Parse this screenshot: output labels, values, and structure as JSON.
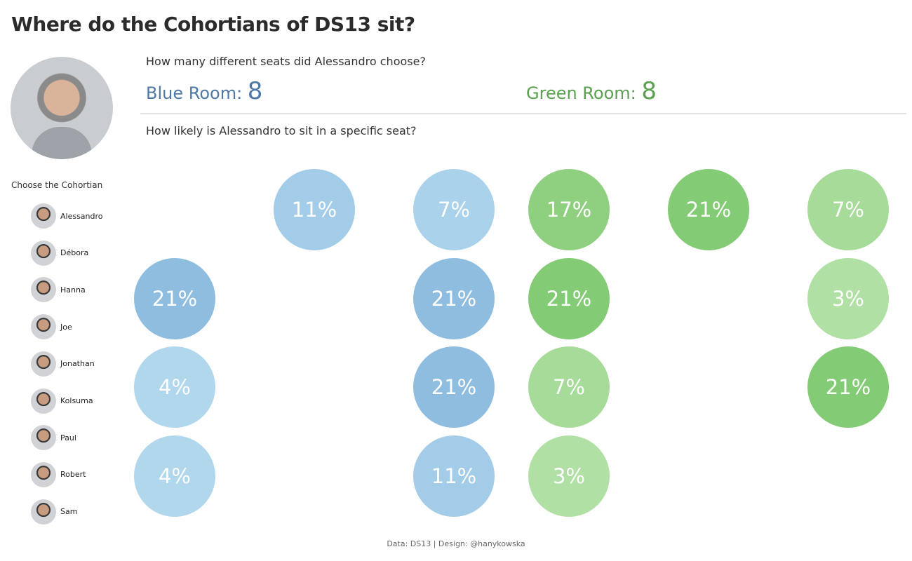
{
  "title": "Where do the Cohortians of DS13 sit?",
  "filter": {
    "label": "Choose the Cohortian",
    "selected": "Alessandro",
    "people": [
      "Alessandro",
      "Débora",
      "Hanna",
      "Joe",
      "Jonathan",
      "Kolsuma",
      "Paul",
      "Robert",
      "Sam"
    ]
  },
  "q1": "How many different seats did Alessandro choose?",
  "blue": {
    "label": "Blue Room: ",
    "value": "8",
    "color": "#4e79a7"
  },
  "green": {
    "label": "Green Room: ",
    "value": "8",
    "color": "#59a14f"
  },
  "q2": "How likely is Alessandro to sit in a specific seat?",
  "footer": "Data: DS13 | Design: @hanykowska",
  "chart_data": {
    "type": "heatmap",
    "seats": [
      {
        "row": 1,
        "col": 2,
        "room": "blue",
        "pct": 11
      },
      {
        "row": 1,
        "col": 3,
        "room": "blue",
        "pct": 7
      },
      {
        "row": 1,
        "col": 4,
        "room": "green",
        "pct": 17
      },
      {
        "row": 1,
        "col": 5,
        "room": "green",
        "pct": 21
      },
      {
        "row": 1,
        "col": 6,
        "room": "green",
        "pct": 7
      },
      {
        "row": 2,
        "col": 1,
        "room": "blue",
        "pct": 21
      },
      {
        "row": 2,
        "col": 3,
        "room": "blue",
        "pct": 21
      },
      {
        "row": 2,
        "col": 4,
        "room": "green",
        "pct": 21
      },
      {
        "row": 2,
        "col": 6,
        "room": "green",
        "pct": 3
      },
      {
        "row": 3,
        "col": 1,
        "room": "blue",
        "pct": 4
      },
      {
        "row": 3,
        "col": 3,
        "room": "blue",
        "pct": 21
      },
      {
        "row": 3,
        "col": 4,
        "room": "green",
        "pct": 7
      },
      {
        "row": 3,
        "col": 6,
        "room": "green",
        "pct": 21
      },
      {
        "row": 4,
        "col": 1,
        "room": "blue",
        "pct": 4
      },
      {
        "row": 4,
        "col": 3,
        "room": "blue",
        "pct": 11
      },
      {
        "row": 4,
        "col": 4,
        "room": "green",
        "pct": 3
      }
    ]
  }
}
